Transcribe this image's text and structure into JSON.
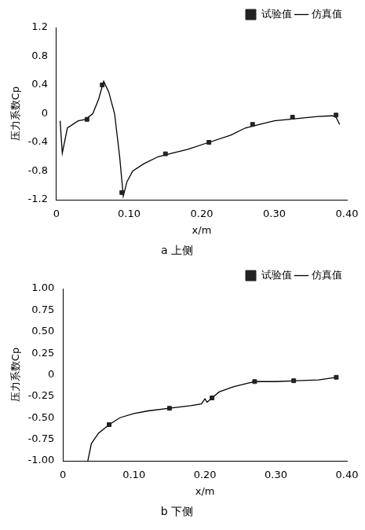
{
  "chart_data": [
    {
      "type": "line",
      "title": "a 上侧",
      "x_label": "x/m",
      "y_label": "压力系数Cp",
      "legend": "top right",
      "grid": false,
      "xlim": [
        0,
        0.4
      ],
      "xticks": [
        0,
        {
          "value": 0.1,
          "label": "0.10"
        },
        {
          "value": 0.2,
          "label": "0.20"
        },
        {
          "value": 0.3,
          "label": "0.30"
        },
        {
          "value": 0.4,
          "label": "0.40"
        }
      ],
      "ylim": [
        -1.2,
        1.2
      ],
      "yticks": [
        -1.2,
        -0.8,
        -0.4,
        0,
        0.4,
        0.8,
        1.2
      ],
      "series": [
        {
          "name": "仿真值",
          "type": "line",
          "color": "#000000",
          "marker": "none",
          "line_style": "solid",
          "x": [
            0.005,
            0.008,
            0.015,
            0.03,
            0.04,
            0.05,
            0.058,
            0.065,
            0.072,
            0.08,
            0.087,
            0.092,
            0.097,
            0.105,
            0.12,
            0.14,
            0.16,
            0.18,
            0.21,
            0.24,
            0.26,
            0.28,
            0.3,
            0.33,
            0.36,
            0.38,
            0.385,
            0.39
          ],
          "values": [
            -0.1,
            -0.55,
            -0.2,
            -0.1,
            -0.08,
            0.0,
            0.2,
            0.45,
            0.3,
            0.0,
            -0.6,
            -1.15,
            -0.95,
            -0.8,
            -0.7,
            -0.6,
            -0.55,
            -0.5,
            -0.4,
            -0.3,
            -0.2,
            -0.15,
            -0.1,
            -0.07,
            -0.04,
            -0.03,
            -0.05,
            -0.15
          ]
        },
        {
          "name": "试验值",
          "type": "scatter",
          "color": "#222222",
          "marker": "square",
          "x": [
            0.042,
            0.063,
            0.09,
            0.15,
            0.21,
            0.27,
            0.325,
            0.385
          ],
          "values": [
            -0.08,
            0.4,
            -1.1,
            -0.56,
            -0.4,
            -0.15,
            -0.05,
            -0.02
          ]
        }
      ]
    },
    {
      "type": "line",
      "title": "b 下侧",
      "x_label": "x/m",
      "y_label": "压力系数Cp",
      "legend": "top right",
      "grid": false,
      "xlim": [
        0,
        0.4
      ],
      "xticks": [
        0,
        {
          "value": 0.1,
          "label": "0.10"
        },
        {
          "value": 0.2,
          "label": "0.20"
        },
        {
          "value": 0.3,
          "label": "0.30"
        },
        {
          "value": 0.4,
          "label": "0.40"
        }
      ],
      "ylim": [
        -1.0,
        1.0
      ],
      "yticks": [
        {
          "value": -1.0,
          "label": "-1.00"
        },
        {
          "value": -0.75,
          "label": "-0.75"
        },
        {
          "value": -0.5,
          "label": "-0.50"
        },
        {
          "value": -0.25,
          "label": "-0.25"
        },
        0,
        {
          "value": 0.25,
          "label": "0.25"
        },
        {
          "value": 0.5,
          "label": "0.50"
        },
        {
          "value": 0.75,
          "label": "0.75"
        },
        {
          "value": 1.0,
          "label": "1.00"
        }
      ],
      "series": [
        {
          "name": "仿真值",
          "type": "line",
          "color": "#000000",
          "marker": "none",
          "line_style": "solid",
          "x": [
            0.035,
            0.04,
            0.05,
            0.065,
            0.08,
            0.1,
            0.12,
            0.15,
            0.18,
            0.195,
            0.2,
            0.203,
            0.21,
            0.22,
            0.24,
            0.26,
            0.27,
            0.3,
            0.33,
            0.36,
            0.385
          ],
          "values": [
            -1.0,
            -0.8,
            -0.68,
            -0.58,
            -0.5,
            -0.45,
            -0.42,
            -0.39,
            -0.36,
            -0.34,
            -0.28,
            -0.32,
            -0.27,
            -0.2,
            -0.14,
            -0.1,
            -0.08,
            -0.08,
            -0.07,
            -0.06,
            -0.03
          ]
        },
        {
          "name": "试验值",
          "type": "scatter",
          "color": "#222222",
          "marker": "square",
          "x": [
            0.065,
            0.15,
            0.21,
            0.27,
            0.325,
            0.385
          ],
          "values": [
            -0.58,
            -0.39,
            -0.27,
            -0.08,
            -0.07,
            -0.03
          ]
        }
      ]
    }
  ]
}
